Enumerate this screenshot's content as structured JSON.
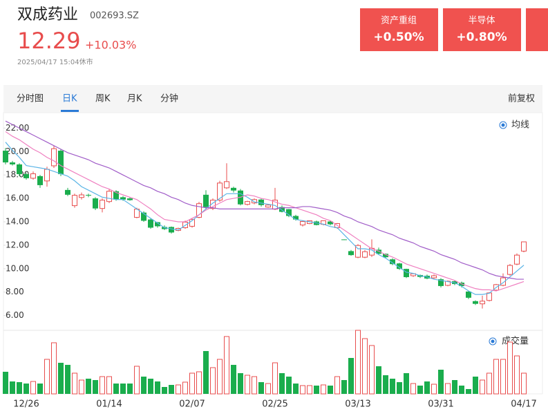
{
  "header": {
    "name": "双成药业",
    "code": "002693.SZ",
    "price": "12.29",
    "change": "+10.03%",
    "time": "2025/04/17 15:04休市"
  },
  "tags": [
    {
      "name": "资产重组",
      "change": "+0.50%"
    },
    {
      "name": "半导体",
      "change": "+0.80%"
    }
  ],
  "tabs": [
    "分时图",
    "日K",
    "周K",
    "月K",
    "分钟"
  ],
  "adjust": "前复权",
  "chart_data": {
    "type": "candlestick",
    "categories": [
      null,
      null,
      null,
      "12/26",
      null,
      null,
      null,
      null,
      null,
      null,
      null,
      null,
      null,
      null,
      null,
      "01/14",
      null,
      null,
      null,
      null,
      null,
      null,
      null,
      null,
      null,
      null,
      null,
      "02/07",
      null,
      null,
      null,
      null,
      null,
      null,
      null,
      null,
      null,
      null,
      null,
      "02/25",
      null,
      null,
      null,
      null,
      null,
      null,
      null,
      null,
      null,
      null,
      null,
      "03/13",
      null,
      null,
      null,
      null,
      null,
      null,
      null,
      null,
      null,
      null,
      null,
      "03/31",
      null,
      null,
      null,
      null,
      null,
      null,
      null,
      null,
      null,
      null,
      null,
      "04/17"
    ],
    "open": [
      20.07,
      19.07,
      18.9,
      18.07,
      17.72,
      17.9,
      17.49,
      18.78,
      20.07,
      16.72,
      15.38,
      16.08,
      16.3,
      16.0,
      15.14,
      15.73,
      16.61,
      16.1,
      16.0,
      14.38,
      14.79,
      14.2,
      13.97,
      13.56,
      13.56,
      13.27,
      13.5,
      13.62,
      14.38,
      16.31,
      15.14,
      15.85,
      16.9,
      16.9,
      16.67,
      15.49,
      15.61,
      15.9,
      15.26,
      15.08,
      15.26,
      15.08,
      14.5,
      13.73,
      13.85,
      14.03,
      13.79,
      14.03,
      13.5,
      12.5,
      11.5,
      10.98,
      10.98,
      11.16,
      11.62,
      11.27,
      10.8,
      10.45,
      9.98,
      9.4,
      9.46,
      9.4,
      9.22,
      9.1,
      8.58,
      8.93,
      8.81,
      8.05,
      7.23,
      7.0,
      7.29,
      8.17,
      8.58,
      9.51,
      10.39,
      11.5
    ],
    "high": [
      20.3,
      19.2,
      19.0,
      18.2,
      18.3,
      18.0,
      18.7,
      20.5,
      20.2,
      16.9,
      16.4,
      16.5,
      16.4,
      16.1,
      16.0,
      16.8,
      16.7,
      16.2,
      16.1,
      15.2,
      14.9,
      14.3,
      14.0,
      13.7,
      13.6,
      13.5,
      14.1,
      14.3,
      15.7,
      16.7,
      16.0,
      17.5,
      19.0,
      17.0,
      16.8,
      15.8,
      16.0,
      16.0,
      15.5,
      16.9,
      15.4,
      15.1,
      14.6,
      14.1,
      14.1,
      14.1,
      14.1,
      14.1,
      13.9,
      12.5,
      11.6,
      12.1,
      11.6,
      12.5,
      11.8,
      11.3,
      10.9,
      10.5,
      10.0,
      9.6,
      9.5,
      9.5,
      9.5,
      9.2,
      9.0,
      9.0,
      8.9,
      8.1,
      7.3,
      7.7,
      8.0,
      8.7,
      9.6,
      10.4,
      11.3,
      12.3
    ],
    "low": [
      18.9,
      18.8,
      17.9,
      17.6,
      17.6,
      16.9,
      17.0,
      18.6,
      17.9,
      16.2,
      15.2,
      15.9,
      16.1,
      15.0,
      14.8,
      15.6,
      15.8,
      15.8,
      15.8,
      14.3,
      14.0,
      13.4,
      13.5,
      13.3,
      13.0,
      13.2,
      13.4,
      13.5,
      14.3,
      15.1,
      15.0,
      15.7,
      16.8,
      16.5,
      15.4,
      15.4,
      15.5,
      15.3,
      15.2,
      15.0,
      14.8,
      14.4,
      14.1,
      13.6,
      13.8,
      13.7,
      13.7,
      13.7,
      13.4,
      12.45,
      11.1,
      10.9,
      10.9,
      11.0,
      11.2,
      10.9,
      10.3,
      9.9,
      9.2,
      9.3,
      9.2,
      9.1,
      9.1,
      8.4,
      8.5,
      8.6,
      8.4,
      7.4,
      6.9,
      6.6,
      7.2,
      8.1,
      8.5,
      9.4,
      10.3,
      11.4
    ],
    "close": [
      19.07,
      18.9,
      18.07,
      17.72,
      18.1,
      17.13,
      18.48,
      20.24,
      18.07,
      16.31,
      16.26,
      16.3,
      16.25,
      15.14,
      15.85,
      16.61,
      15.9,
      15.9,
      15.85,
      15.08,
      14.09,
      13.5,
      13.62,
      13.38,
      13.09,
      13.44,
      13.97,
      14.2,
      15.55,
      15.26,
      15.85,
      17.31,
      17.43,
      16.67,
      15.49,
      15.73,
      15.9,
      15.43,
      15.43,
      15.85,
      14.85,
      14.5,
      14.2,
      14.03,
      14.09,
      13.73,
      14.09,
      13.79,
      13.85,
      12.45,
      11.16,
      11.98,
      11.45,
      11.74,
      11.27,
      10.98,
      10.39,
      9.98,
      9.28,
      9.57,
      9.3,
      9.16,
      9.4,
      8.52,
      8.93,
      8.69,
      8.52,
      7.52,
      7.0,
      7.23,
      7.93,
      8.64,
      9.22,
      10.28,
      11.16,
      12.29
    ],
    "ylim": [
      4.8,
      23.2
    ],
    "yticks": [
      {
        "value": 6,
        "label": "6.00"
      },
      {
        "value": 8,
        "label": "8.00"
      },
      {
        "value": 10,
        "label": "10.00"
      },
      {
        "value": 12,
        "label": "12.00"
      },
      {
        "value": 14,
        "label": "14.00"
      },
      {
        "value": 16,
        "label": "16.00"
      },
      {
        "value": 18,
        "label": "18.00"
      },
      {
        "value": 20,
        "label": "20.00"
      },
      {
        "value": 22,
        "label": "22.00"
      }
    ],
    "up_color": "#e84c4c",
    "down_color": "#1aad4d",
    "legend": "均线",
    "series": [
      {
        "color": "#5ab4e6",
        "values": [
          20.8,
          20.1,
          19.5,
          18.8,
          18.7,
          18.6,
          18.5,
          18.3,
          18.1,
          17.9,
          17.5,
          17.0,
          16.7,
          16.4,
          16.1,
          16.0,
          15.9,
          15.9,
          15.5,
          15.1,
          14.7,
          14.3,
          13.9,
          13.5,
          13.4,
          13.3,
          13.7,
          14.1,
          14.6,
          15.1,
          15.6,
          16.0,
          16.4,
          16.4,
          16.4,
          16.1,
          15.7,
          15.6,
          15.5,
          15.4,
          15.0,
          14.6,
          14.2,
          14.1,
          14.0,
          13.9,
          13.8,
          13.6,
          13.5,
          12.9,
          12.3,
          11.7,
          11.7,
          11.6,
          11.2,
          10.9,
          10.5,
          10.1,
          9.7,
          9.6,
          9.4,
          9.3,
          9.1,
          9.0,
          8.9,
          8.8,
          8.5,
          8.1,
          7.8,
          7.8,
          7.9,
          8.4,
          8.8,
          9.3,
          9.8,
          10.3
        ]
      },
      {
        "color": "#ef7fc0",
        "values": [
          21.7,
          21.3,
          21.0,
          20.6,
          20.2,
          19.9,
          19.5,
          19.2,
          18.8,
          18.5,
          18.2,
          17.9,
          17.6,
          17.3,
          17.0,
          16.8,
          16.5,
          16.3,
          16.1,
          15.9,
          15.5,
          15.1,
          14.6,
          14.2,
          14.1,
          14.0,
          14.0,
          14.3,
          14.6,
          15.0,
          15.3,
          15.6,
          15.9,
          16.0,
          16.1,
          16.3,
          16.2,
          16.0,
          15.9,
          15.7,
          15.5,
          15.4,
          15.2,
          15.0,
          14.8,
          14.6,
          14.3,
          14.1,
          13.7,
          13.3,
          12.9,
          12.5,
          12.1,
          11.7,
          11.5,
          11.2,
          11.0,
          10.7,
          10.4,
          10.2,
          10.0,
          9.8,
          9.6,
          9.4,
          9.2,
          9.0,
          8.7,
          8.5,
          8.3,
          8.2,
          8.2,
          8.1,
          8.3,
          8.5,
          8.7,
          8.9
        ]
      },
      {
        "color": "#a05cc8",
        "values": [
          22.6,
          22.3,
          22.0,
          21.7,
          21.4,
          21.1,
          20.8,
          20.5,
          20.2,
          19.9,
          19.7,
          19.5,
          19.3,
          19.0,
          18.8,
          18.6,
          18.3,
          18.0,
          17.7,
          17.4,
          17.1,
          16.9,
          16.6,
          16.4,
          16.1,
          15.9,
          15.6,
          15.4,
          15.3,
          15.2,
          15.2,
          15.1,
          15.1,
          15.1,
          15.1,
          15.1,
          15.1,
          15.1,
          15.1,
          15.1,
          15.2,
          15.2,
          15.2,
          15.3,
          15.3,
          15.2,
          15.1,
          15.0,
          14.8,
          14.5,
          14.3,
          14.0,
          13.8,
          13.6,
          13.3,
          13.1,
          12.9,
          12.6,
          12.4,
          12.2,
          11.9,
          11.7,
          11.5,
          11.2,
          11.0,
          10.8,
          10.5,
          10.3,
          10.1,
          9.9,
          9.6,
          9.4,
          9.3,
          9.2,
          9.1,
          9.1
        ]
      }
    ],
    "volume": {
      "label": "成交量",
      "ylim": [
        0,
        95
      ],
      "values": [
        32,
        18,
        17,
        15,
        18,
        15,
        50,
        74,
        45,
        42,
        30,
        20,
        22,
        20,
        25,
        25,
        15,
        15,
        15,
        40,
        25,
        22,
        18,
        10,
        13,
        13,
        17,
        30,
        32,
        62,
        38,
        50,
        83,
        42,
        30,
        27,
        25,
        17,
        15,
        45,
        30,
        25,
        15,
        12,
        12,
        12,
        13,
        12,
        25,
        20,
        52,
        92,
        80,
        70,
        40,
        27,
        22,
        17,
        30,
        15,
        12,
        18,
        14,
        35,
        15,
        20,
        12,
        7,
        25,
        20,
        30,
        50,
        50,
        75,
        55,
        30
      ]
    }
  }
}
